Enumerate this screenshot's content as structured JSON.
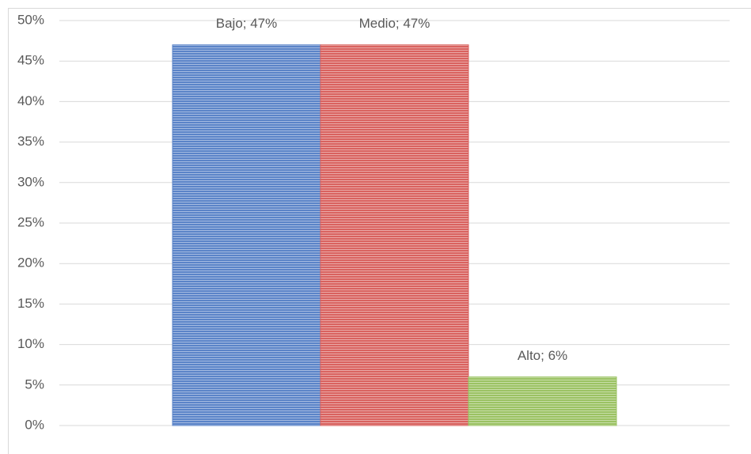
{
  "chart_data": {
    "type": "bar",
    "values": [
      47,
      47,
      6
    ],
    "value_labels": [
      "Bajo; 47%",
      "Medio; 47%",
      "Alto; 6%"
    ],
    "colors": [
      "#5b84c8",
      "#d9625f",
      "#9bc263"
    ],
    "ylim": [
      0,
      50
    ],
    "yticks": [
      {
        "value": 0,
        "label": "0%"
      },
      {
        "value": 5,
        "label": "5%"
      },
      {
        "value": 10,
        "label": "10%"
      },
      {
        "value": 15,
        "label": "15%"
      },
      {
        "value": 20,
        "label": "20%"
      },
      {
        "value": 25,
        "label": "25%"
      },
      {
        "value": 30,
        "label": "30%"
      },
      {
        "value": 35,
        "label": "35%"
      },
      {
        "value": 40,
        "label": "40%"
      },
      {
        "value": 45,
        "label": "45%"
      },
      {
        "value": 50,
        "label": "50%"
      }
    ],
    "grid": true
  }
}
